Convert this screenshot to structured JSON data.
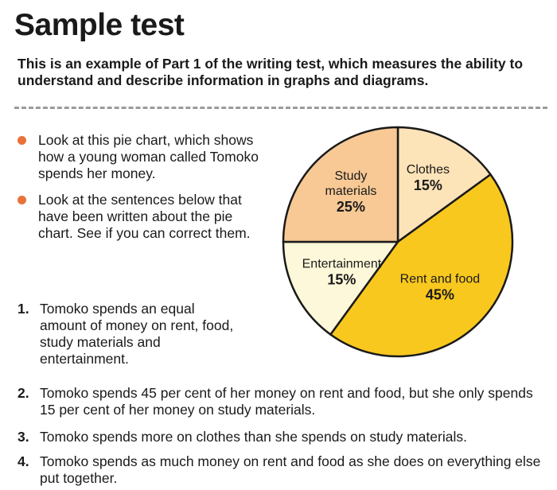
{
  "header": {
    "title": "Sample test",
    "intro": "This is an example of Part 1 of the writing test, which measures the ability to understand and describe information in graphs and diagrams."
  },
  "bullets": [
    "Look at this pie chart, which shows how a young woman called Tomoko spends her money.",
    "Look at the sentences below that have been written about the pie chart. See if you can correct them."
  ],
  "sentences": [
    {
      "num": "1.",
      "text": "Tomoko spends an equal amount of money on rent, food, study materials and entertainment."
    },
    {
      "num": "2.",
      "text": "Tomoko spends 45 per cent of her money on rent and food, but she only spends 15 per cent of her money on study materials."
    },
    {
      "num": "3.",
      "text": "Tomoko spends more on clothes than she spends on study materials."
    },
    {
      "num": "4.",
      "text": "Tomoko spends as much money on rent and food as she does on everything else put together."
    }
  ],
  "chart_data": {
    "type": "pie",
    "slices": [
      {
        "name": "Clothes",
        "value": 15,
        "label": "15%",
        "color": "#fde3b8"
      },
      {
        "name": "Rent and food",
        "value": 45,
        "label": "45%",
        "color": "#f9c81f"
      },
      {
        "name": "Entertainment",
        "value": 15,
        "label": "15%",
        "color": "#fdf8d9"
      },
      {
        "name": "Study materials",
        "value": 25,
        "label": "25%",
        "color": "#f8c995"
      }
    ],
    "stroke_color": "#1a1a1a",
    "start": "12 o'clock",
    "direction": "clockwise"
  },
  "colors": {
    "bullet": "#e8733a",
    "divider": "#9a9a9a"
  }
}
